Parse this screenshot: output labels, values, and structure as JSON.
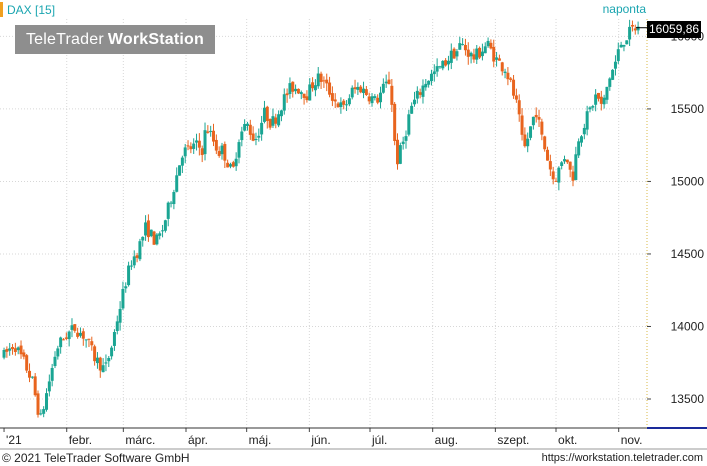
{
  "header": {
    "instrument": "DAX [15]",
    "period": "naponta"
  },
  "watermark": {
    "brand": "TeleTrader",
    "product": "WorkStation"
  },
  "last_price": "16059,86",
  "footer": {
    "copyright": "© 2021 TeleTrader Software GmbH",
    "url": "https://workstation.teletrader.com"
  },
  "colors": {
    "up": "#1aa593",
    "down": "#e8641e",
    "accent": "#1aa5b0",
    "grid": "#d7d7d7"
  },
  "chart_data": {
    "type": "candlestick",
    "title": "DAX [15]",
    "period": "naponta",
    "y_ticks": [
      "13500",
      "14000",
      "14500",
      "15000",
      "15500",
      "16000"
    ],
    "ylim": [
      13300,
      16120
    ],
    "x_ticks": [
      {
        "label": "'21",
        "day": 0
      },
      {
        "label": "febr.",
        "day": 31
      },
      {
        "label": "márc.",
        "day": 59
      },
      {
        "label": "ápr.",
        "day": 90
      },
      {
        "label": "máj.",
        "day": 120
      },
      {
        "label": "jún.",
        "day": 151
      },
      {
        "label": "júl.",
        "day": 181
      },
      {
        "label": "aug.",
        "day": 212
      },
      {
        "label": "szept.",
        "day": 243
      },
      {
        "label": "okt.",
        "day": 273
      },
      {
        "label": "nov.",
        "day": 304
      }
    ],
    "xlim": [
      -2,
      318
    ],
    "last_value": 16059.86,
    "path": [
      [
        0,
        13800
      ],
      [
        5,
        13880
      ],
      [
        10,
        13750
      ],
      [
        14,
        13620
      ],
      [
        18,
        13350
      ],
      [
        22,
        13600
      ],
      [
        26,
        13850
      ],
      [
        30,
        13930
      ],
      [
        35,
        13990
      ],
      [
        40,
        13930
      ],
      [
        45,
        13780
      ],
      [
        50,
        13700
      ],
      [
        53,
        13850
      ],
      [
        56,
        14050
      ],
      [
        60,
        14300
      ],
      [
        63,
        14450
      ],
      [
        66,
        14520
      ],
      [
        70,
        14680
      ],
      [
        72,
        14650
      ],
      [
        75,
        14580
      ],
      [
        78,
        14650
      ],
      [
        81,
        14800
      ],
      [
        85,
        15020
      ],
      [
        88,
        15200
      ],
      [
        91,
        15220
      ],
      [
        95,
        15250
      ],
      [
        98,
        15220
      ],
      [
        100,
        15380
      ],
      [
        103,
        15300
      ],
      [
        106,
        15200
      ],
      [
        108,
        15220
      ],
      [
        110,
        15150
      ],
      [
        113,
        15050
      ],
      [
        116,
        15300
      ],
      [
        120,
        15400
      ],
      [
        124,
        15280
      ],
      [
        126,
        15350
      ],
      [
        129,
        15480
      ],
      [
        132,
        15400
      ],
      [
        135,
        15450
      ],
      [
        138,
        15560
      ],
      [
        142,
        15650
      ],
      [
        146,
        15640
      ],
      [
        150,
        15600
      ],
      [
        153,
        15680
      ],
      [
        156,
        15720
      ],
      [
        160,
        15640
      ],
      [
        164,
        15550
      ],
      [
        168,
        15500
      ],
      [
        172,
        15620
      ],
      [
        176,
        15650
      ],
      [
        180,
        15600
      ],
      [
        184,
        15550
      ],
      [
        186,
        15600
      ],
      [
        188,
        15650
      ],
      [
        191,
        15700
      ],
      [
        194,
        15120
      ],
      [
        198,
        15300
      ],
      [
        201,
        15500
      ],
      [
        205,
        15600
      ],
      [
        209,
        15700
      ],
      [
        213,
        15750
      ],
      [
        217,
        15800
      ],
      [
        221,
        15870
      ],
      [
        224,
        15900
      ],
      [
        226,
        15950
      ],
      [
        229,
        15900
      ],
      [
        232,
        15850
      ],
      [
        236,
        15900
      ],
      [
        239,
        15950
      ],
      [
        243,
        15850
      ],
      [
        246,
        15800
      ],
      [
        248,
        15780
      ],
      [
        251,
        15650
      ],
      [
        254,
        15500
      ],
      [
        257,
        15200
      ],
      [
        260,
        15350
      ],
      [
        263,
        15500
      ],
      [
        266,
        15300
      ],
      [
        269,
        15150
      ],
      [
        272,
        15000
      ],
      [
        275,
        15100
      ],
      [
        278,
        15200
      ],
      [
        281,
        15000
      ],
      [
        284,
        15300
      ],
      [
        287,
        15400
      ],
      [
        290,
        15500
      ],
      [
        293,
        15600
      ],
      [
        296,
        15500
      ],
      [
        299,
        15700
      ],
      [
        302,
        15800
      ],
      [
        305,
        15950
      ],
      [
        308,
        16000
      ],
      [
        311,
        16050
      ],
      [
        314,
        16060
      ]
    ]
  }
}
